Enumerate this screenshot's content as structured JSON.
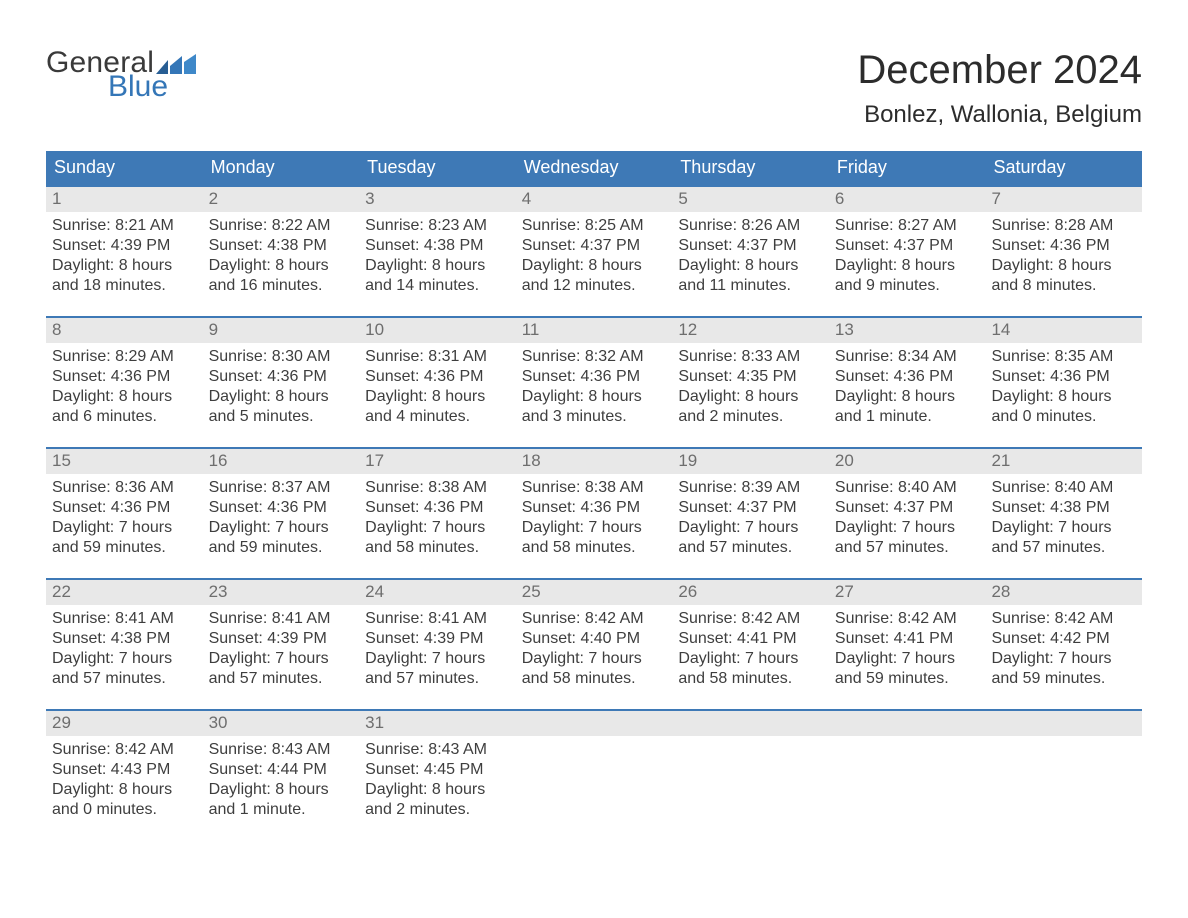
{
  "colors": {
    "header_bg": "#3e79b6",
    "header_text": "#ffffff",
    "daynum_bg": "#e8e8e8",
    "daynum_text": "#6e6e6e",
    "body_text": "#3e3e3e",
    "week_border": "#3e79b6",
    "logo_blue": "#3476b7",
    "logo_general": "#3a3a3a",
    "page_bg": "#ffffff"
  },
  "typography": {
    "title_fontsize": 40,
    "subtitle_fontsize": 24,
    "dow_fontsize": 18,
    "daynum_fontsize": 17,
    "body_fontsize": 16,
    "logo_fontsize": 30,
    "font_family": "Arial"
  },
  "logo": {
    "word1": "General",
    "word2": "Blue"
  },
  "title": {
    "month": "December 2024",
    "location": "Bonlez, Wallonia, Belgium"
  },
  "dow": [
    "Sunday",
    "Monday",
    "Tuesday",
    "Wednesday",
    "Thursday",
    "Friday",
    "Saturday"
  ],
  "labels": {
    "sunrise_prefix": "Sunrise: ",
    "sunset_prefix": "Sunset: ",
    "daylight_prefix": "Daylight: "
  },
  "weeks": [
    [
      {
        "n": "1",
        "sunrise": "8:21 AM",
        "sunset": "4:39 PM",
        "daylight_l1": "8 hours",
        "daylight_l2": "and 18 minutes."
      },
      {
        "n": "2",
        "sunrise": "8:22 AM",
        "sunset": "4:38 PM",
        "daylight_l1": "8 hours",
        "daylight_l2": "and 16 minutes."
      },
      {
        "n": "3",
        "sunrise": "8:23 AM",
        "sunset": "4:38 PM",
        "daylight_l1": "8 hours",
        "daylight_l2": "and 14 minutes."
      },
      {
        "n": "4",
        "sunrise": "8:25 AM",
        "sunset": "4:37 PM",
        "daylight_l1": "8 hours",
        "daylight_l2": "and 12 minutes."
      },
      {
        "n": "5",
        "sunrise": "8:26 AM",
        "sunset": "4:37 PM",
        "daylight_l1": "8 hours",
        "daylight_l2": "and 11 minutes."
      },
      {
        "n": "6",
        "sunrise": "8:27 AM",
        "sunset": "4:37 PM",
        "daylight_l1": "8 hours",
        "daylight_l2": "and 9 minutes."
      },
      {
        "n": "7",
        "sunrise": "8:28 AM",
        "sunset": "4:36 PM",
        "daylight_l1": "8 hours",
        "daylight_l2": "and 8 minutes."
      }
    ],
    [
      {
        "n": "8",
        "sunrise": "8:29 AM",
        "sunset": "4:36 PM",
        "daylight_l1": "8 hours",
        "daylight_l2": "and 6 minutes."
      },
      {
        "n": "9",
        "sunrise": "8:30 AM",
        "sunset": "4:36 PM",
        "daylight_l1": "8 hours",
        "daylight_l2": "and 5 minutes."
      },
      {
        "n": "10",
        "sunrise": "8:31 AM",
        "sunset": "4:36 PM",
        "daylight_l1": "8 hours",
        "daylight_l2": "and 4 minutes."
      },
      {
        "n": "11",
        "sunrise": "8:32 AM",
        "sunset": "4:36 PM",
        "daylight_l1": "8 hours",
        "daylight_l2": "and 3 minutes."
      },
      {
        "n": "12",
        "sunrise": "8:33 AM",
        "sunset": "4:35 PM",
        "daylight_l1": "8 hours",
        "daylight_l2": "and 2 minutes."
      },
      {
        "n": "13",
        "sunrise": "8:34 AM",
        "sunset": "4:36 PM",
        "daylight_l1": "8 hours",
        "daylight_l2": "and 1 minute."
      },
      {
        "n": "14",
        "sunrise": "8:35 AM",
        "sunset": "4:36 PM",
        "daylight_l1": "8 hours",
        "daylight_l2": "and 0 minutes."
      }
    ],
    [
      {
        "n": "15",
        "sunrise": "8:36 AM",
        "sunset": "4:36 PM",
        "daylight_l1": "7 hours",
        "daylight_l2": "and 59 minutes."
      },
      {
        "n": "16",
        "sunrise": "8:37 AM",
        "sunset": "4:36 PM",
        "daylight_l1": "7 hours",
        "daylight_l2": "and 59 minutes."
      },
      {
        "n": "17",
        "sunrise": "8:38 AM",
        "sunset": "4:36 PM",
        "daylight_l1": "7 hours",
        "daylight_l2": "and 58 minutes."
      },
      {
        "n": "18",
        "sunrise": "8:38 AM",
        "sunset": "4:36 PM",
        "daylight_l1": "7 hours",
        "daylight_l2": "and 58 minutes."
      },
      {
        "n": "19",
        "sunrise": "8:39 AM",
        "sunset": "4:37 PM",
        "daylight_l1": "7 hours",
        "daylight_l2": "and 57 minutes."
      },
      {
        "n": "20",
        "sunrise": "8:40 AM",
        "sunset": "4:37 PM",
        "daylight_l1": "7 hours",
        "daylight_l2": "and 57 minutes."
      },
      {
        "n": "21",
        "sunrise": "8:40 AM",
        "sunset": "4:38 PM",
        "daylight_l1": "7 hours",
        "daylight_l2": "and 57 minutes."
      }
    ],
    [
      {
        "n": "22",
        "sunrise": "8:41 AM",
        "sunset": "4:38 PM",
        "daylight_l1": "7 hours",
        "daylight_l2": "and 57 minutes."
      },
      {
        "n": "23",
        "sunrise": "8:41 AM",
        "sunset": "4:39 PM",
        "daylight_l1": "7 hours",
        "daylight_l2": "and 57 minutes."
      },
      {
        "n": "24",
        "sunrise": "8:41 AM",
        "sunset": "4:39 PM",
        "daylight_l1": "7 hours",
        "daylight_l2": "and 57 minutes."
      },
      {
        "n": "25",
        "sunrise": "8:42 AM",
        "sunset": "4:40 PM",
        "daylight_l1": "7 hours",
        "daylight_l2": "and 58 minutes."
      },
      {
        "n": "26",
        "sunrise": "8:42 AM",
        "sunset": "4:41 PM",
        "daylight_l1": "7 hours",
        "daylight_l2": "and 58 minutes."
      },
      {
        "n": "27",
        "sunrise": "8:42 AM",
        "sunset": "4:41 PM",
        "daylight_l1": "7 hours",
        "daylight_l2": "and 59 minutes."
      },
      {
        "n": "28",
        "sunrise": "8:42 AM",
        "sunset": "4:42 PM",
        "daylight_l1": "7 hours",
        "daylight_l2": "and 59 minutes."
      }
    ],
    [
      {
        "n": "29",
        "sunrise": "8:42 AM",
        "sunset": "4:43 PM",
        "daylight_l1": "8 hours",
        "daylight_l2": "and 0 minutes."
      },
      {
        "n": "30",
        "sunrise": "8:43 AM",
        "sunset": "4:44 PM",
        "daylight_l1": "8 hours",
        "daylight_l2": "and 1 minute."
      },
      {
        "n": "31",
        "sunrise": "8:43 AM",
        "sunset": "4:45 PM",
        "daylight_l1": "8 hours",
        "daylight_l2": "and 2 minutes."
      },
      null,
      null,
      null,
      null
    ]
  ]
}
